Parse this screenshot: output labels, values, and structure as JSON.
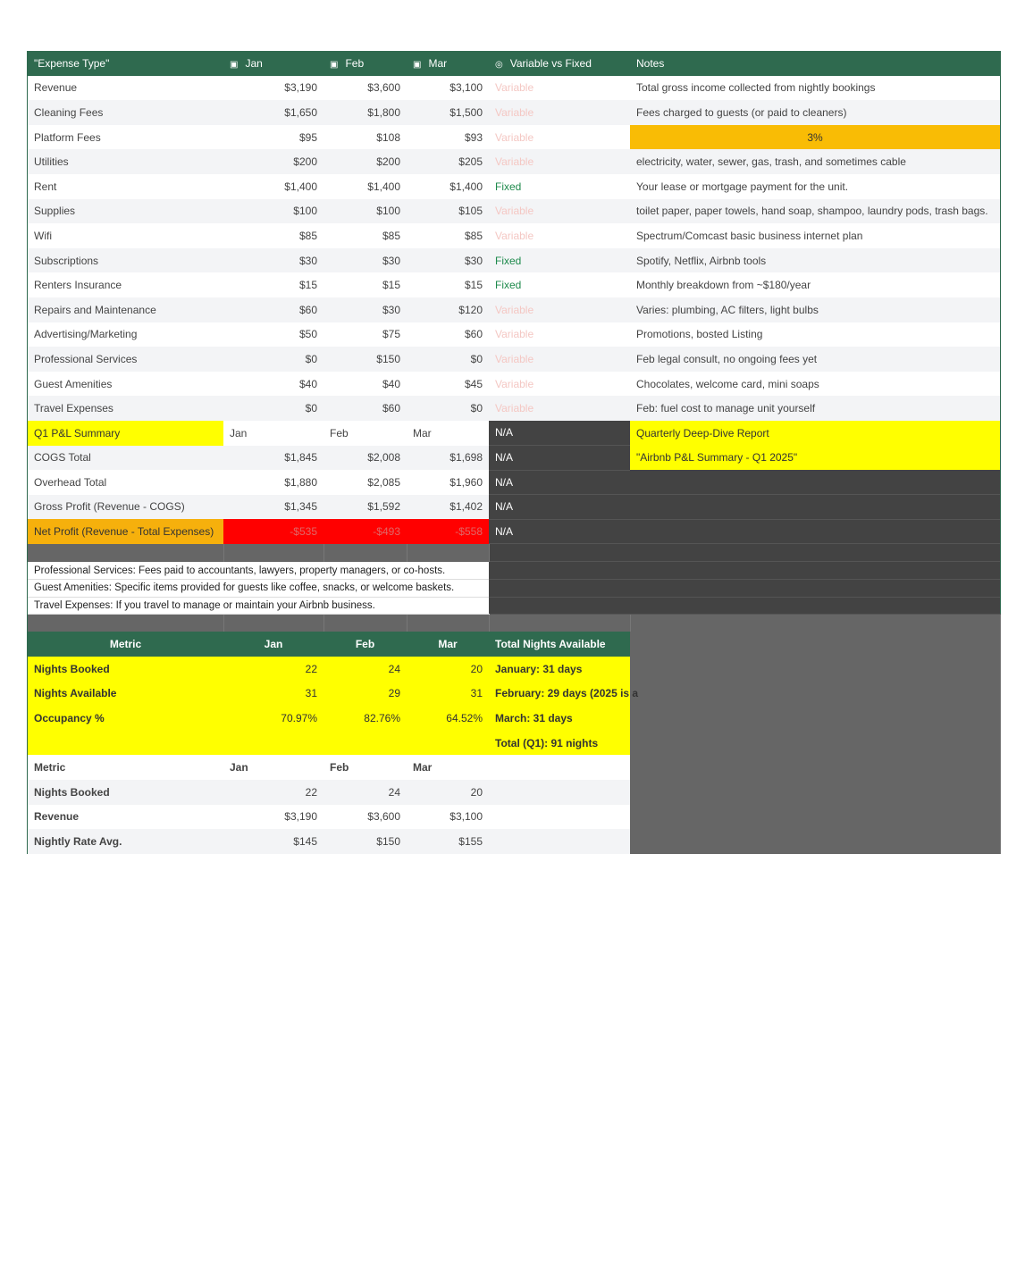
{
  "expense_table": {
    "headers": [
      "\"Expense Type\"",
      "Jan",
      "Feb",
      "Mar",
      "Variable vs Fixed",
      "Notes"
    ],
    "header_icons": [
      "",
      "money-icon",
      "money-icon",
      "money-icon",
      "dropdown-chip-icon",
      ""
    ],
    "rows": [
      {
        "type": "Revenue",
        "jan": "$3,190",
        "feb": "$3,600",
        "mar": "$3,100",
        "kind": "Variable",
        "notes": "Total gross income collected from nightly bookings"
      },
      {
        "type": "Cleaning Fees",
        "jan": "$1,650",
        "feb": "$1,800",
        "mar": "$1,500",
        "kind": "Variable",
        "notes": "Fees charged to guests (or paid to cleaners)"
      },
      {
        "type": "Platform Fees",
        "jan": "$95",
        "feb": "$108",
        "mar": "$93",
        "kind": "Variable",
        "notes": "3%"
      },
      {
        "type": "Utilities",
        "jan": "$200",
        "feb": "$200",
        "mar": "$205",
        "kind": "Variable",
        "notes": "electricity, water, sewer, gas, trash, and sometimes cable"
      },
      {
        "type": "Rent",
        "jan": "$1,400",
        "feb": "$1,400",
        "mar": "$1,400",
        "kind": "Fixed",
        "notes": "Your lease or mortgage payment for the unit."
      },
      {
        "type": "Supplies",
        "jan": "$100",
        "feb": "$100",
        "mar": "$105",
        "kind": "Variable",
        "notes": "toilet paper, paper towels, hand soap, shampoo, laundry pods, trash bags."
      },
      {
        "type": "Wifi",
        "jan": "$85",
        "feb": "$85",
        "mar": "$85",
        "kind": "Variable",
        "notes": "Spectrum/Comcast basic business internet plan"
      },
      {
        "type": "Subscriptions",
        "jan": "$30",
        "feb": "$30",
        "mar": "$30",
        "kind": "Fixed",
        "notes": "Spotify, Netflix, Airbnb tools"
      },
      {
        "type": "Renters Insurance",
        "jan": "$15",
        "feb": "$15",
        "mar": "$15",
        "kind": "Fixed",
        "notes": "Monthly breakdown from ~$180/year"
      },
      {
        "type": "Repairs and Maintenance",
        "jan": "$60",
        "feb": "$30",
        "mar": "$120",
        "kind": "Variable",
        "notes": "Varies: plumbing, AC filters, light bulbs"
      },
      {
        "type": "Advertising/Marketing",
        "jan": "$50",
        "feb": "$75",
        "mar": "$60",
        "kind": "Variable",
        "notes": "Promotions, bosted Listing"
      },
      {
        "type": "Professional Services",
        "jan": "$0",
        "feb": "$150",
        "mar": "$0",
        "kind": "Variable",
        "notes": "Feb legal consult, no ongoing fees yet"
      },
      {
        "type": "Guest Amenities",
        "jan": "$40",
        "feb": "$40",
        "mar": "$45",
        "kind": "Variable",
        "notes": "Chocolates, welcome card, mini soaps"
      },
      {
        "type": "Travel Expenses",
        "jan": "$0",
        "feb": "$60",
        "mar": "$0",
        "kind": "Variable",
        "notes": "Feb: fuel cost to manage unit yourself"
      }
    ]
  },
  "summary": {
    "title": "Q1 P&L Summary",
    "jan": "Jan",
    "feb": "Feb",
    "mar": "Mar",
    "na": "N/A",
    "note1": "Quarterly Deep-Dive Report",
    "note2": "\"Airbnb P&L Summary - Q1 2025\"",
    "rows": [
      {
        "label": "COGS Total",
        "jan": "$1,845",
        "feb": "$2,008",
        "mar": "$1,698"
      },
      {
        "label": "Overhead Total",
        "jan": "$1,880",
        "feb": "$2,085",
        "mar": "$1,960"
      },
      {
        "label": "Gross Profit (Revenue - COGS)",
        "jan": "$1,345",
        "feb": "$1,592",
        "mar": "$1,402"
      },
      {
        "label": "Net Profit (Revenue - Total Expenses)",
        "jan": "-$535",
        "feb": "-$493",
        "mar": "-$558"
      }
    ]
  },
  "definitions": [
    "Professional Services: Fees paid to accountants, lawyers, property managers, or co-hosts.",
    "Guest Amenities: Specific items provided for guests like coffee, snacks, or welcome baskets.",
    "Travel Expenses: If you travel to manage or maintain your Airbnb business."
  ],
  "occupancy": {
    "headers": [
      "Metric",
      "Jan",
      "Feb",
      "Mar",
      "Total Nights Available"
    ],
    "rows": [
      {
        "label": "Nights Booked",
        "jan": "22",
        "feb": "24",
        "mar": "20",
        "note": "January: 31 days"
      },
      {
        "label": "Nights Available",
        "jan": "31",
        "feb": "29",
        "mar": "31",
        "note": "February: 29 days (2025 is a"
      },
      {
        "label": "Occupancy %",
        "jan": "70.97%",
        "feb": "82.76%",
        "mar": "64.52%",
        "note": "March: 31 days"
      },
      {
        "label": "",
        "jan": "",
        "feb": "",
        "mar": "",
        "note": "Total (Q1): 91 nights"
      }
    ]
  },
  "rates": {
    "headers": [
      "Metric",
      "Jan",
      "Feb",
      "Mar"
    ],
    "rows": [
      {
        "label": "Nights Booked",
        "jan": "22",
        "feb": "24",
        "mar": "20"
      },
      {
        "label": "Revenue",
        "jan": "$3,190",
        "feb": "$3,600",
        "mar": "$3,100"
      },
      {
        "label": "Nightly Rate Avg.",
        "jan": "$145",
        "feb": "$150",
        "mar": "$155"
      }
    ]
  },
  "colors": {
    "header": "#2f6a4f",
    "highlight": "#ffff00",
    "negative": "#ff0000",
    "fixed": "#1e8a4c",
    "variable": "#f4c7c3"
  }
}
